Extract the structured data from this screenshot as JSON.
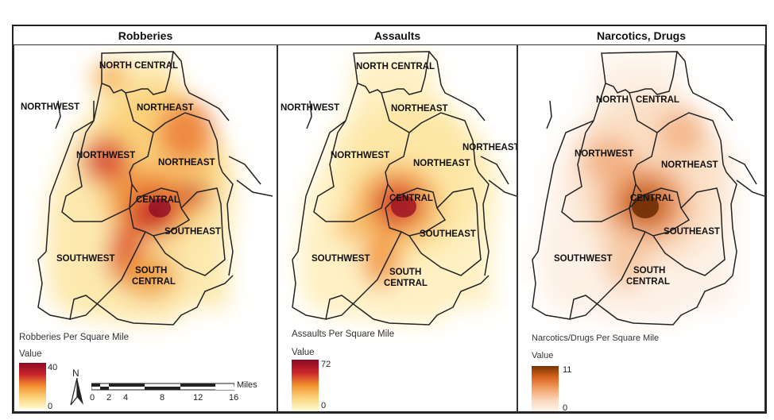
{
  "panels": [
    {
      "title": "Robberies",
      "legend_title": "Robberies Per Square Mile",
      "legend_value_label": "Value",
      "legend_max": "40",
      "legend_min": "0",
      "ramp_colors": [
        "#fffbd0",
        "#fbd27a",
        "#f2902e",
        "#c9242a",
        "#8a0a25"
      ]
    },
    {
      "title": "Assaults",
      "legend_title": "Assaults Per Square Mile",
      "legend_value_label": "Value",
      "legend_max": "72",
      "legend_min": "0",
      "ramp_colors": [
        "#fffbd0",
        "#fbd27a",
        "#f2902e",
        "#c9242a",
        "#8a0a25"
      ]
    },
    {
      "title": "Narcotics, Drugs",
      "legend_title": "Narcotics/Drugs Per Square Mile",
      "legend_value_label": "Value",
      "legend_max": "11",
      "legend_min": "0",
      "ramp_colors": [
        "#fff6ef",
        "#fbd8bd",
        "#f3a36a",
        "#d9661f",
        "#7a3303"
      ]
    }
  ],
  "district_labels": {
    "north_central": "NORTH CENTRAL",
    "northwest": "NORTHWEST",
    "northeast": "NORTHEAST",
    "central": "CENTRAL",
    "southeast": "SOUTHEAST",
    "southwest": "SOUTHWEST",
    "south_central_line1": "SOUTH",
    "south_central_line2": "CENTRAL",
    "north_central_split_a": "NORTH",
    "north_central_split_b": "CENTRAL"
  },
  "north_arrow": {
    "letter": "N"
  },
  "scale_bar": {
    "unit": "Miles",
    "ticks": [
      "0",
      "2",
      "4",
      "8",
      "12",
      "16"
    ]
  }
}
